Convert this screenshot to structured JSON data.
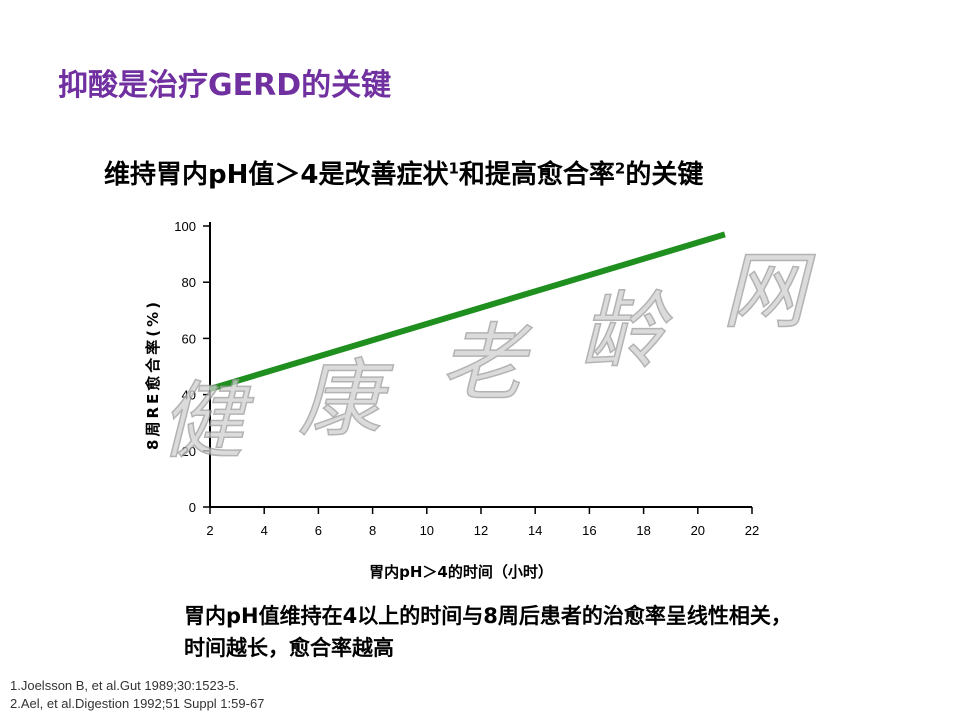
{
  "slide": {
    "title": "抑酸是治疗GERD的关键",
    "subtitle": {
      "part1": "维持胃内pH值＞4是改善症状",
      "sup1": "1",
      "part2": "和提高愈合率",
      "sup2": "2",
      "part3": "的关键"
    },
    "conclusion_line1": "胃内pH值维持在4以上的时间与8周后患者的治愈率呈线性相关，",
    "conclusion_line2": "时间越长，愈合率越高",
    "references": [
      "1.Joelsson B, et al.Gut 1989;30:1523-5.",
      "2.Ael, et al.Digestion 1992;51 Suppl 1:59-67"
    ],
    "watermark": [
      "健",
      "康",
      "老",
      "龄",
      "网"
    ]
  },
  "chart_data": {
    "type": "line",
    "xlabel": "胃内pH＞4的时间（小时）",
    "ylabel": "8周RE愈合率(%)",
    "xlim": [
      2,
      22
    ],
    "ylim": [
      0,
      100
    ],
    "x_ticks": [
      2,
      4,
      6,
      8,
      10,
      12,
      14,
      16,
      18,
      20,
      22
    ],
    "y_ticks": [
      0,
      20,
      40,
      60,
      80,
      100
    ],
    "grid": false,
    "series": [
      {
        "x": [
          2,
          21
        ],
        "y": [
          42,
          97
        ],
        "color": "#1f8f1f"
      }
    ]
  }
}
